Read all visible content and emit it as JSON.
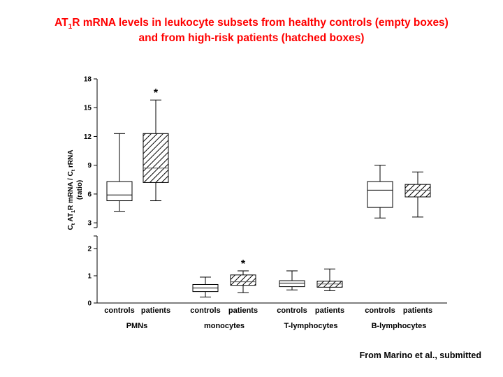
{
  "title": {
    "line1_a": "AT",
    "line1_sub": "1",
    "line1_b": "R mRNA levels in leukocyte subsets from healthy controls (empty boxes)",
    "line2": "and from high-risk patients (hatched boxes)"
  },
  "credit": "From Marino et al., submitted",
  "chart_data": {
    "type": "box",
    "ylabel": {
      "line1_parts": [
        "C",
        "t",
        " AT",
        "1",
        "R mRNA / C",
        "t",
        " rRNA"
      ],
      "line2": "(ratio)"
    },
    "y_axis_lower": {
      "range": [
        0,
        2
      ],
      "ticks": [
        "0",
        "1",
        "2"
      ]
    },
    "y_axis_upper": {
      "range": [
        2.5,
        18
      ],
      "ticks": [
        "3",
        "6",
        "9",
        "12",
        "15",
        "18"
      ]
    },
    "legend": {
      "controls": "empty boxes",
      "patients": "hatched boxes"
    },
    "groups": [
      {
        "name": "PMNs",
        "boxes": [
          {
            "label": "controls",
            "hatched": false,
            "min": 4.2,
            "q1": 5.3,
            "median": 5.9,
            "q3": 7.3,
            "max": 12.3,
            "marker": ""
          },
          {
            "label": "patients",
            "hatched": true,
            "min": 5.3,
            "q1": 7.2,
            "median": 8.7,
            "q3": 12.3,
            "max": 15.8,
            "marker": "*"
          }
        ]
      },
      {
        "name": "monocytes",
        "boxes": [
          {
            "label": "controls",
            "hatched": false,
            "min": 0.22,
            "q1": 0.42,
            "median": 0.55,
            "q3": 0.68,
            "max": 0.95,
            "marker": ""
          },
          {
            "label": "patients",
            "hatched": true,
            "min": 0.38,
            "q1": 0.65,
            "median": 0.78,
            "q3": 1.03,
            "max": 1.18,
            "marker": "*"
          }
        ]
      },
      {
        "name": "T-lymphocytes",
        "boxes": [
          {
            "label": "controls",
            "hatched": false,
            "min": 0.48,
            "q1": 0.6,
            "median": 0.73,
            "q3": 0.82,
            "max": 1.18,
            "marker": ""
          },
          {
            "label": "patients",
            "hatched": true,
            "min": 0.45,
            "q1": 0.58,
            "median": 0.7,
            "q3": 0.8,
            "max": 1.25,
            "marker": ""
          }
        ]
      },
      {
        "name": "B-lymphocytes",
        "boxes": [
          {
            "label": "controls",
            "hatched": false,
            "min": 3.5,
            "q1": 4.6,
            "median": 6.4,
            "q3": 7.3,
            "max": 9.0,
            "marker": ""
          },
          {
            "label": "patients",
            "hatched": true,
            "min": 3.6,
            "q1": 5.7,
            "median": 6.4,
            "q3": 7.0,
            "max": 8.3,
            "marker": ""
          }
        ]
      }
    ]
  }
}
